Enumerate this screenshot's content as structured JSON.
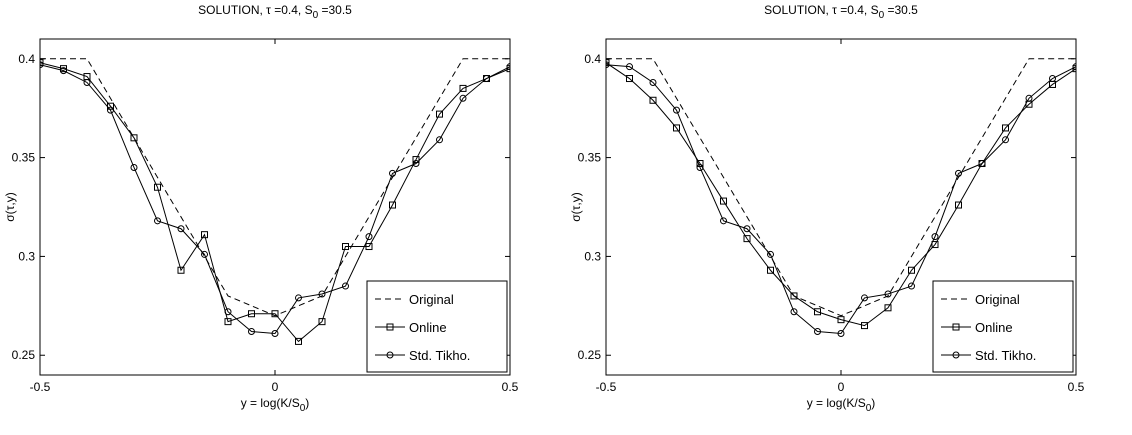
{
  "chart_data": [
    {
      "type": "line",
      "title": "SOLUTION, τ =0.4, S",
      "title_sub": "0",
      "title_tail": " =30.5",
      "xlabel": "y = log(K/S",
      "xlabel_sub": "0",
      "xlabel_tail": ")",
      "ylabel": "σ(τ,y)",
      "xlim": [
        -0.5,
        0.5
      ],
      "ylim": [
        0.24,
        0.41
      ],
      "xticks": [
        -0.5,
        0,
        0.5
      ],
      "xtick_labels": [
        "-0.5",
        "0",
        "0.5"
      ],
      "yticks": [
        0.25,
        0.3,
        0.35,
        0.4
      ],
      "ytick_labels": [
        "0.25",
        "0.3",
        "0.35",
        "0.4"
      ],
      "grid": false,
      "legend_position": "bottom-right",
      "series": [
        {
          "name": "Original",
          "style": "dashed",
          "marker": "none",
          "x": [
            -0.5,
            -0.4,
            -0.1,
            0,
            0.1,
            0.4,
            0.5
          ],
          "y": [
            0.4,
            0.4,
            0.28,
            0.27,
            0.28,
            0.4,
            0.4
          ]
        },
        {
          "name": "Online",
          "style": "solid",
          "marker": "square",
          "x": [
            -0.5,
            -0.45,
            -0.4,
            -0.35,
            -0.3,
            -0.25,
            -0.2,
            -0.15,
            -0.1,
            -0.05,
            0,
            0.05,
            0.1,
            0.15,
            0.2,
            0.25,
            0.3,
            0.35,
            0.4,
            0.45,
            0.5
          ],
          "y": [
            0.398,
            0.395,
            0.391,
            0.376,
            0.36,
            0.335,
            0.293,
            0.311,
            0.267,
            0.271,
            0.271,
            0.257,
            0.267,
            0.305,
            0.305,
            0.326,
            0.349,
            0.372,
            0.385,
            0.39,
            0.395
          ]
        },
        {
          "name": "Std. Tikho.",
          "style": "solid",
          "marker": "circle",
          "x": [
            -0.5,
            -0.45,
            -0.4,
            -0.35,
            -0.3,
            -0.25,
            -0.2,
            -0.15,
            -0.1,
            -0.05,
            0,
            0.05,
            0.1,
            0.15,
            0.2,
            0.25,
            0.3,
            0.35,
            0.4,
            0.45,
            0.5
          ],
          "y": [
            0.397,
            0.394,
            0.388,
            0.374,
            0.345,
            0.318,
            0.314,
            0.301,
            0.272,
            0.262,
            0.261,
            0.279,
            0.281,
            0.285,
            0.31,
            0.342,
            0.347,
            0.359,
            0.38,
            0.39,
            0.396
          ]
        }
      ]
    },
    {
      "type": "line",
      "title": "SOLUTION, τ =0.4, S",
      "title_sub": "0",
      "title_tail": " =30.5",
      "xlabel": "y = log(K/S",
      "xlabel_sub": "0",
      "xlabel_tail": ")",
      "ylabel": "σ(τ,y)",
      "xlim": [
        -0.5,
        0.5
      ],
      "ylim": [
        0.24,
        0.41
      ],
      "xticks": [
        -0.5,
        0,
        0.5
      ],
      "xtick_labels": [
        "-0.5",
        "0",
        "0.5"
      ],
      "yticks": [
        0.25,
        0.3,
        0.35,
        0.4
      ],
      "ytick_labels": [
        "0.25",
        "0.3",
        "0.35",
        "0.4"
      ],
      "grid": false,
      "legend_position": "bottom-right",
      "series": [
        {
          "name": "Original",
          "style": "dashed",
          "marker": "none",
          "x": [
            -0.5,
            -0.4,
            -0.1,
            0,
            0.1,
            0.4,
            0.5
          ],
          "y": [
            0.4,
            0.4,
            0.28,
            0.27,
            0.28,
            0.4,
            0.4
          ]
        },
        {
          "name": "Online",
          "style": "solid",
          "marker": "square",
          "x": [
            -0.5,
            -0.45,
            -0.4,
            -0.35,
            -0.3,
            -0.25,
            -0.2,
            -0.15,
            -0.1,
            -0.05,
            0,
            0.05,
            0.1,
            0.15,
            0.2,
            0.25,
            0.3,
            0.35,
            0.4,
            0.45,
            0.5
          ],
          "y": [
            0.398,
            0.39,
            0.379,
            0.365,
            0.347,
            0.328,
            0.309,
            0.293,
            0.28,
            0.272,
            0.268,
            0.265,
            0.274,
            0.293,
            0.306,
            0.326,
            0.347,
            0.365,
            0.377,
            0.387,
            0.395
          ]
        },
        {
          "name": "Std. Tikho.",
          "style": "solid",
          "marker": "circle",
          "x": [
            -0.5,
            -0.45,
            -0.4,
            -0.35,
            -0.3,
            -0.25,
            -0.2,
            -0.15,
            -0.1,
            -0.05,
            0,
            0.05,
            0.1,
            0.15,
            0.2,
            0.25,
            0.3,
            0.35,
            0.4,
            0.45,
            0.5
          ],
          "y": [
            0.397,
            0.396,
            0.388,
            0.374,
            0.345,
            0.318,
            0.314,
            0.301,
            0.272,
            0.262,
            0.261,
            0.279,
            0.281,
            0.285,
            0.31,
            0.342,
            0.347,
            0.359,
            0.38,
            0.39,
            0.396
          ]
        }
      ]
    }
  ]
}
